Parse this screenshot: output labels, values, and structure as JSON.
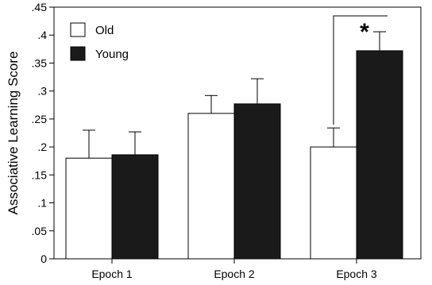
{
  "chart_data": {
    "type": "bar",
    "title": "",
    "xlabel": "",
    "ylabel": "Associative Learning Score",
    "categories": [
      "Epoch 1",
      "Epoch 2",
      "Epoch 3"
    ],
    "series": [
      {
        "name": "Old",
        "values": [
          0.18,
          0.26,
          0.2
        ],
        "errors": [
          0.05,
          0.032,
          0.034
        ],
        "color": "#ffffff"
      },
      {
        "name": "Young",
        "values": [
          0.186,
          0.277,
          0.372
        ],
        "errors": [
          0.041,
          0.045,
          0.034
        ],
        "color": "#1a1a1a"
      }
    ],
    "ylim": [
      0,
      0.45
    ],
    "yticks": [
      0,
      0.05,
      0.1,
      0.15,
      0.2,
      0.25,
      0.3,
      0.35,
      0.4,
      0.45
    ],
    "ytick_labels": [
      "0",
      ".05",
      ".1",
      ".15",
      ".2",
      ".25",
      ".3",
      ".35",
      ".4",
      ".45"
    ],
    "legend_position": "top-left",
    "grid": false,
    "annotations": [
      {
        "text": "*",
        "category": "Epoch 3",
        "note": "significance bracket between Old and Young"
      }
    ]
  }
}
